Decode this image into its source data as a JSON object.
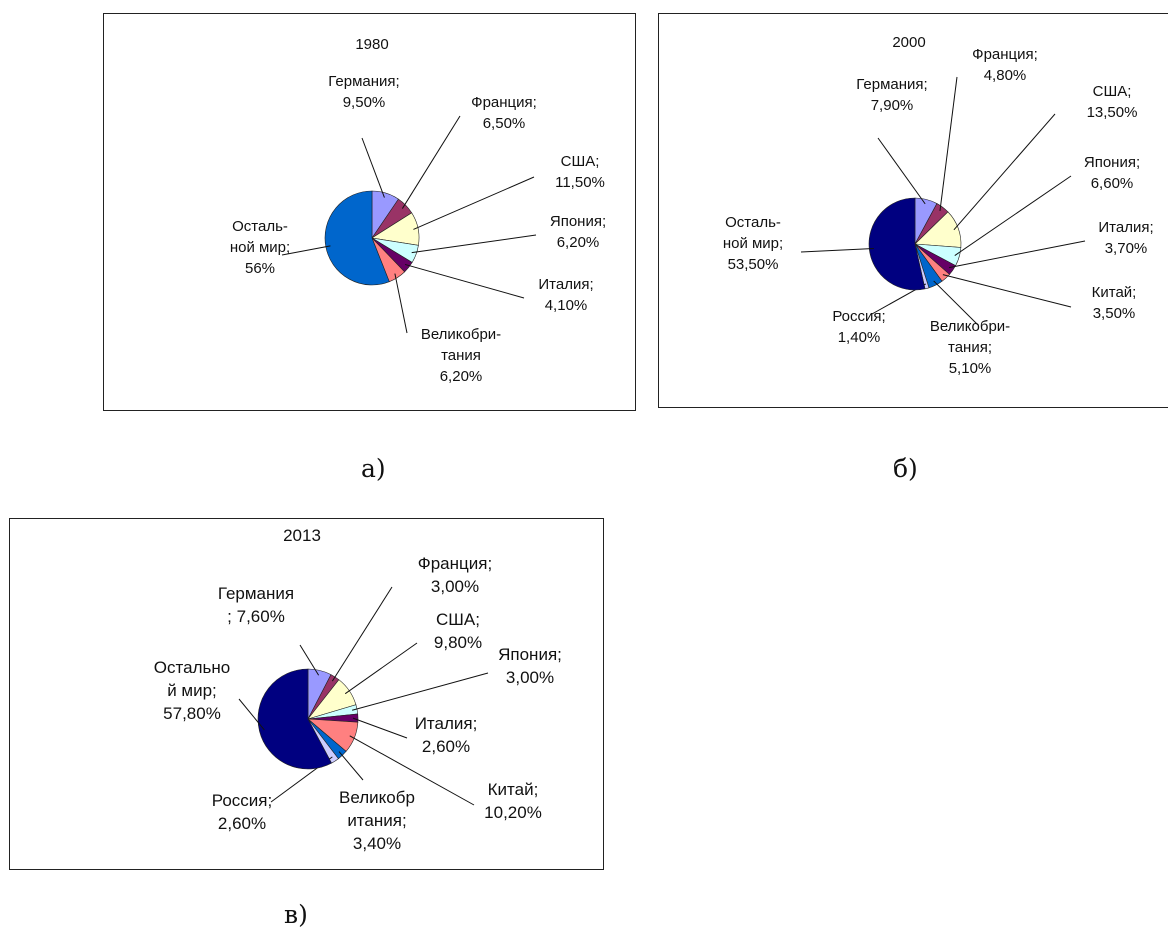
{
  "captions": {
    "a": "а)",
    "b": "б)",
    "c": "в)"
  },
  "chart_data": [
    {
      "type": "pie",
      "title": "1980",
      "slices": [
        {
          "lines": [
            "Германия;",
            "9,50%"
          ],
          "value": 9.5,
          "color": "#9999ff"
        },
        {
          "lines": [
            "Франция;",
            "6,50%"
          ],
          "value": 6.5,
          "color": "#993366"
        },
        {
          "lines": [
            "США;",
            "11,50%"
          ],
          "value": 11.5,
          "color": "#ffffcc"
        },
        {
          "lines": [
            "Япония;",
            "6,20%"
          ],
          "value": 6.2,
          "color": "#ccffff"
        },
        {
          "lines": [
            "Италия;",
            "4,10%"
          ],
          "value": 4.1,
          "color": "#660066"
        },
        {
          "lines": [
            "Великобри-",
            "тания",
            "6,20%"
          ],
          "value": 6.2,
          "color": "#ff8080"
        },
        {
          "lines": [
            "Осталь-",
            "ной мир;",
            "56%"
          ],
          "value": 56,
          "color": "#0066cc"
        }
      ]
    },
    {
      "type": "pie",
      "title": "2000",
      "slices": [
        {
          "lines": [
            "Германия;",
            "7,90%"
          ],
          "value": 7.9,
          "color": "#9999ff"
        },
        {
          "lines": [
            "Франция;",
            "4,80%"
          ],
          "value": 4.8,
          "color": "#993366"
        },
        {
          "lines": [
            "США;",
            "13,50%"
          ],
          "value": 13.5,
          "color": "#ffffcc"
        },
        {
          "lines": [
            "Япония;",
            "6,60%"
          ],
          "value": 6.6,
          "color": "#ccffff"
        },
        {
          "lines": [
            "Италия;",
            "3,70%"
          ],
          "value": 3.7,
          "color": "#660066"
        },
        {
          "lines": [
            "Китай;",
            "3,50%"
          ],
          "value": 3.5,
          "color": "#ff8080"
        },
        {
          "lines": [
            "Великобри-",
            "тания;",
            "5,10%"
          ],
          "value": 5.1,
          "color": "#0066cc"
        },
        {
          "lines": [
            "Россия;",
            "1,40%"
          ],
          "value": 1.4,
          "color": "#ccccff"
        },
        {
          "lines": [
            "Осталь-",
            "ной мир;",
            "53,50%"
          ],
          "value": 53.5,
          "color": "#000080"
        }
      ]
    },
    {
      "type": "pie",
      "title": "2013",
      "slices": [
        {
          "lines": [
            "Германия",
            "; 7,60%"
          ],
          "value": 7.6,
          "color": "#9999ff"
        },
        {
          "lines": [
            "Франция;",
            "3,00%"
          ],
          "value": 3.0,
          "color": "#993366"
        },
        {
          "lines": [
            "США;",
            "9,80%"
          ],
          "value": 9.8,
          "color": "#ffffcc"
        },
        {
          "lines": [
            "Япония;",
            "3,00%"
          ],
          "value": 3.0,
          "color": "#ccffff"
        },
        {
          "lines": [
            "Италия;",
            "2,60%"
          ],
          "value": 2.6,
          "color": "#660066"
        },
        {
          "lines": [
            "Китай;",
            "10,20%"
          ],
          "value": 10.2,
          "color": "#ff8080"
        },
        {
          "lines": [
            "Великобр",
            "итания;",
            "3,40%"
          ],
          "value": 3.4,
          "color": "#0066cc"
        },
        {
          "lines": [
            "Россия;",
            "2,60%"
          ],
          "value": 2.6,
          "color": "#ccccff"
        },
        {
          "lines": [
            "Остально",
            "й мир;",
            "57,80%"
          ],
          "value": 57.8,
          "color": "#000080"
        }
      ]
    }
  ]
}
